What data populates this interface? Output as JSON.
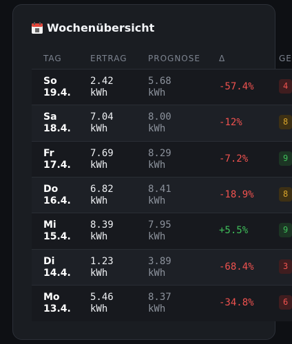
{
  "header": {
    "title": "Wochenübersicht"
  },
  "table": {
    "columns": [
      "TAG",
      "ERTRAG",
      "PROGNOSE",
      "Δ",
      "GE"
    ],
    "rows": [
      {
        "day": "So 19.4.",
        "ertrag": "2.42 kWh",
        "prognose": "5.68 kWh",
        "delta": "-57.4%",
        "delta_color": "#f0524f",
        "badge": "4",
        "badge_color": "red"
      },
      {
        "day": "Sa 18.4.",
        "ertrag": "7.04 kWh",
        "prognose": "8.00 kWh",
        "delta": "-12%",
        "delta_color": "#f0524f",
        "badge": "8",
        "badge_color": "yellow"
      },
      {
        "day": "Fr 17.4.",
        "ertrag": "7.69 kWh",
        "prognose": "8.29 kWh",
        "delta": "-7.2%",
        "delta_color": "#f0524f",
        "badge": "9",
        "badge_color": "green"
      },
      {
        "day": "Do 16.4.",
        "ertrag": "6.82 kWh",
        "prognose": "8.41 kWh",
        "delta": "-18.9%",
        "delta_color": "#f0524f",
        "badge": "8",
        "badge_color": "yellow"
      },
      {
        "day": "Mi 15.4.",
        "ertrag": "8.39 kWh",
        "prognose": "7.95 kWh",
        "delta": "+5.5%",
        "delta_color": "#3fbf5a",
        "badge": "9",
        "badge_color": "green"
      },
      {
        "day": "Di 14.4.",
        "ertrag": "1.23 kWh",
        "prognose": "3.89 kWh",
        "delta": "-68.4%",
        "delta_color": "#f0524f",
        "badge": "3",
        "badge_color": "red"
      },
      {
        "day": "Mo 13.4.",
        "ertrag": "5.46 kWh",
        "prognose": "8.37 kWh",
        "delta": "-34.8%",
        "delta_color": "#f0524f",
        "badge": "6",
        "badge_color": "red"
      }
    ]
  }
}
